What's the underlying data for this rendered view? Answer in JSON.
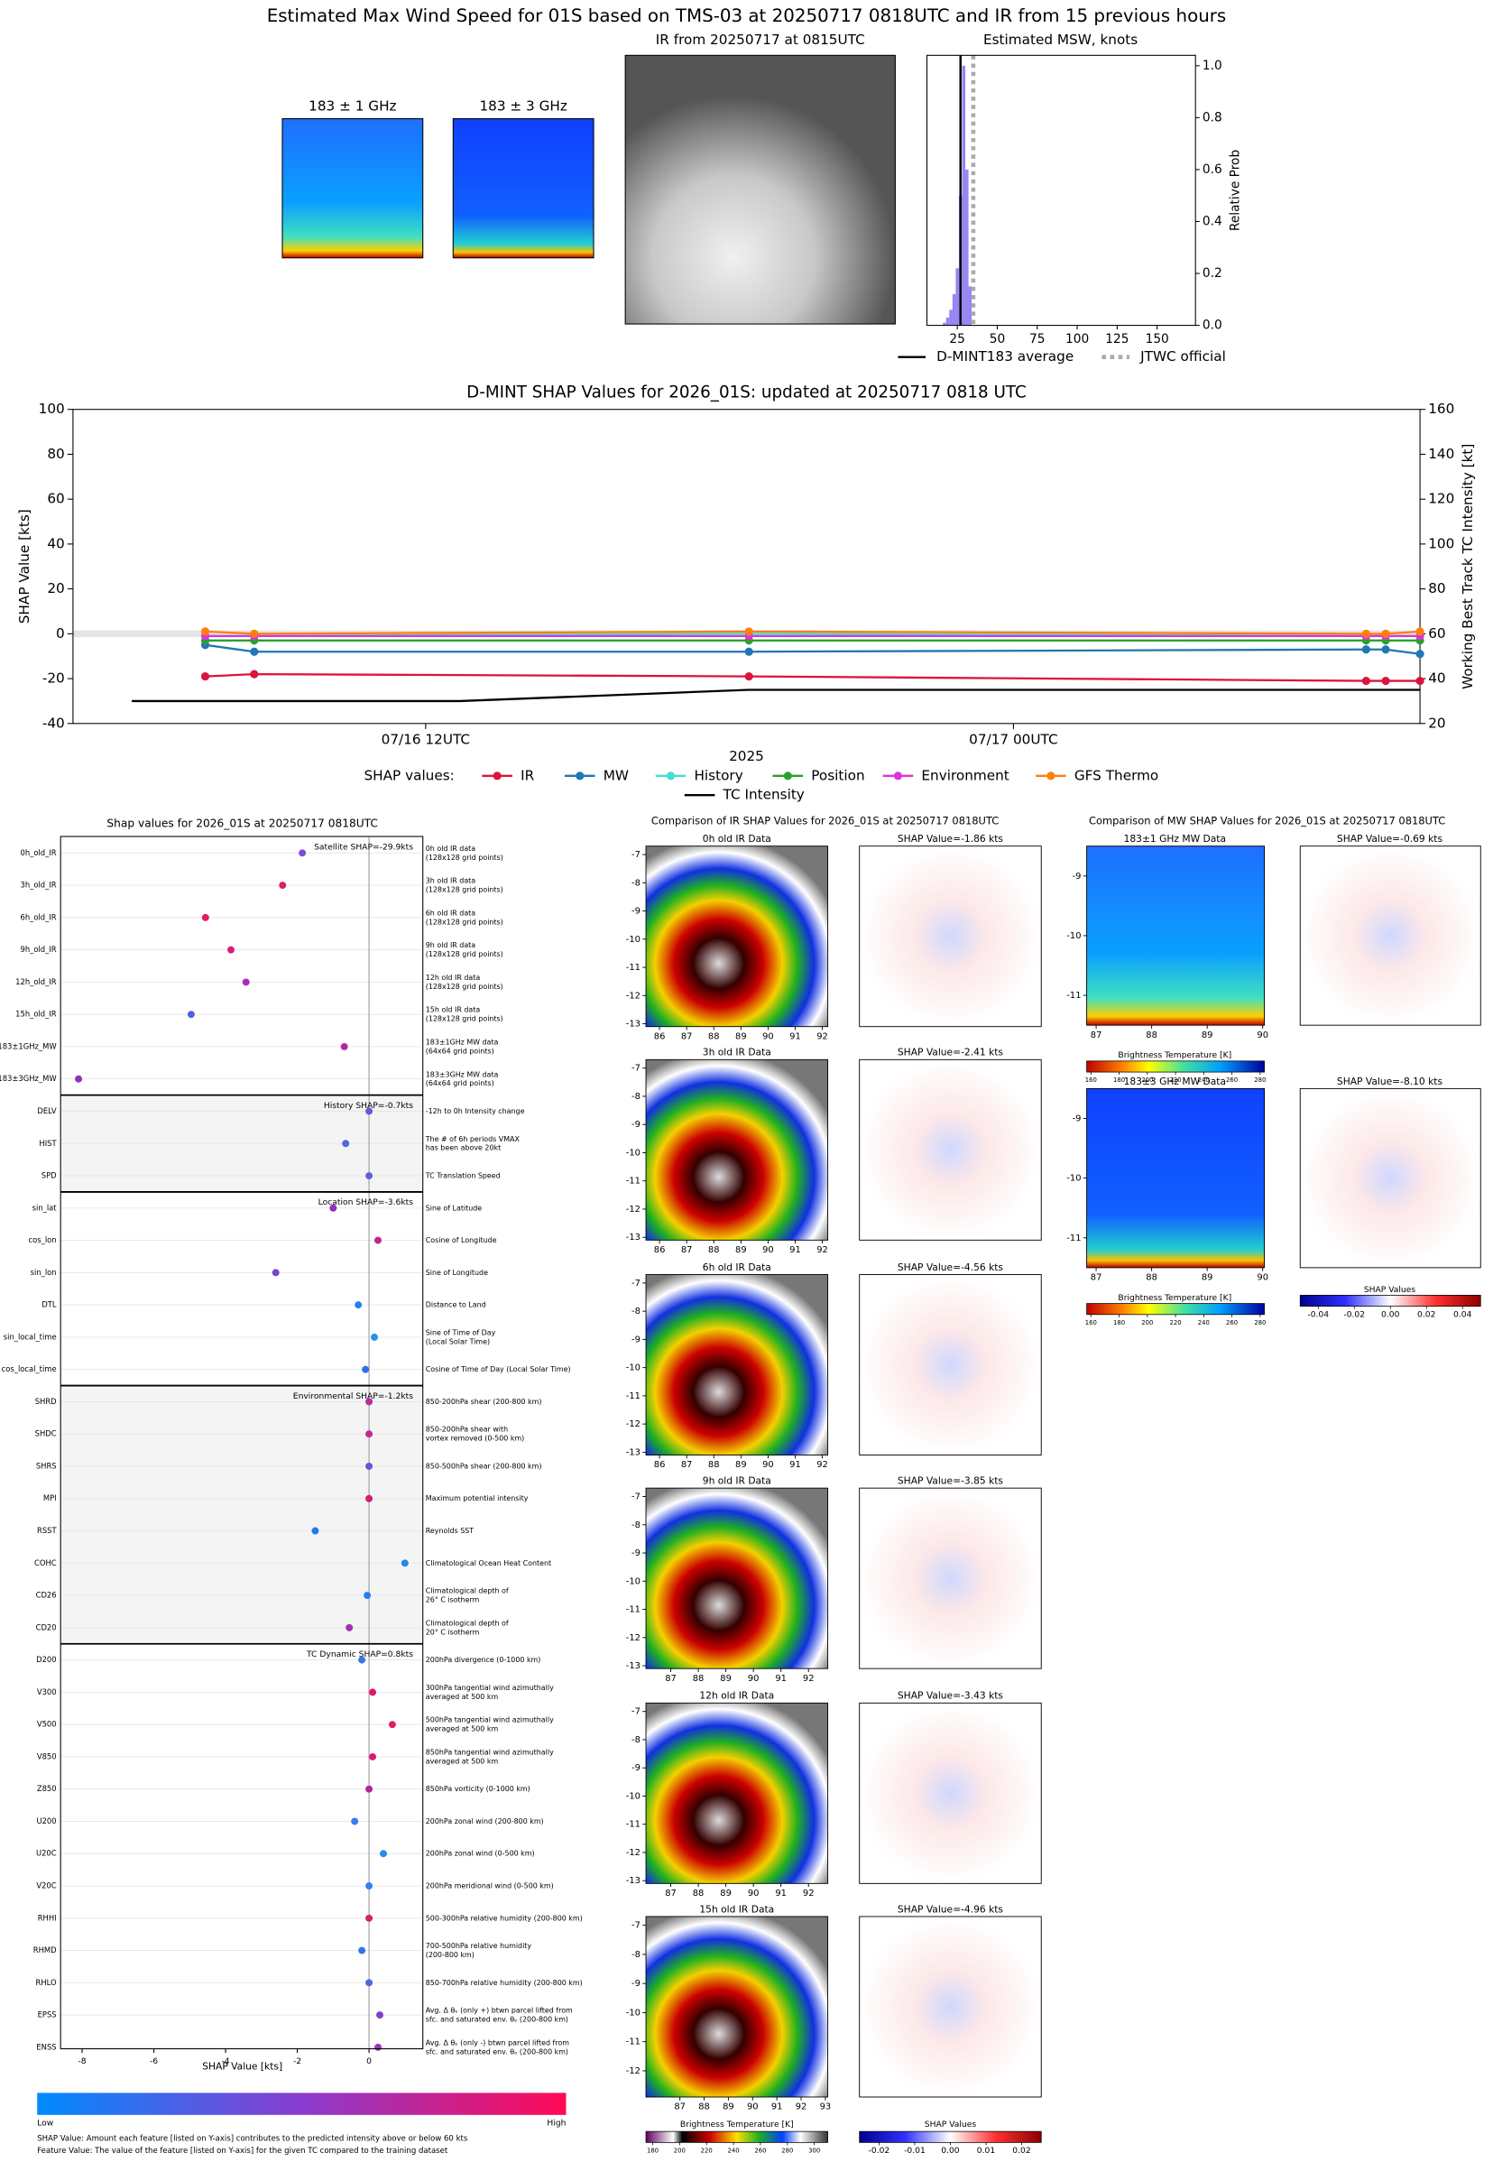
{
  "title": "Estimated Max Wind Speed for 01S based on TMS-03 at 20250717 0818UTC and IR from 15 previous hours",
  "top_images": [
    "183 ± 1 GHz",
    "183 ± 3 GHz",
    "IR from 20250717 at 0815UTC"
  ],
  "chart_data": [
    {
      "type": "histogram",
      "title": "Estimated MSW, knots",
      "y_label": "Relative Prob",
      "bins": [
        16,
        18,
        20,
        22,
        24,
        26,
        28,
        30,
        32,
        34
      ],
      "counts": [
        0.01,
        0.03,
        0.06,
        0.12,
        0.22,
        0.5,
        1.0,
        0.6,
        0.15
      ],
      "color": "#7b68ee",
      "xlim": [
        6,
        174
      ],
      "xticks": [
        25,
        50,
        75,
        100,
        125,
        150
      ],
      "ylim": [
        0,
        1.04
      ],
      "yticks": [
        {
          "value": 0,
          "label": "0.0"
        },
        0.2,
        0.4,
        0.6,
        0.8,
        {
          "value": 1,
          "label": "1.0"
        }
      ],
      "lines": [
        {
          "name": "D-MINT183 average",
          "color": "#000000",
          "x": 27,
          "dashed": false
        },
        {
          "name": "JTWC official",
          "color": "#aaaaaa",
          "x": 35,
          "dashed": true
        }
      ]
    },
    {
      "type": "line",
      "title": "D-MINT SHAP Values for 2026_01S: updated at 20250717 0818 UTC",
      "x_label": "2025",
      "y_label": "SHAP Value [kts]",
      "y2_label": "Working Best Track TC Intensity [kt]",
      "legend_title": "SHAP values:",
      "x": [
        7.5,
        8.5,
        18.6,
        31.2,
        31.6,
        32.3
      ],
      "xlim": [
        4.8,
        32.3
      ],
      "xticks": [
        {
          "value": 12,
          "label": "07/16 12UTC"
        },
        {
          "value": 24,
          "label": "07/17 00UTC"
        }
      ],
      "ylim": [
        -40,
        100
      ],
      "yticks": [
        -40,
        -20,
        0,
        20,
        40,
        60,
        80,
        100
      ],
      "y2lim": [
        20,
        160
      ],
      "y2ticks": [
        20,
        40,
        60,
        80,
        100,
        120,
        140,
        160
      ],
      "series": [
        {
          "name": "IR",
          "color": "#dc143c",
          "values": [
            -19,
            -18,
            -19,
            -21,
            -21,
            -21
          ]
        },
        {
          "name": "MW",
          "color": "#1f77b4",
          "values": [
            -5,
            -8,
            -8,
            -7,
            -7,
            -9
          ]
        },
        {
          "name": "History",
          "color": "#40e0d0",
          "values": [
            -1,
            -1,
            0,
            -1,
            -1,
            -1
          ]
        },
        {
          "name": "Position",
          "color": "#2ca02c",
          "values": [
            -3,
            -3,
            -3,
            -3,
            -3,
            -3
          ]
        },
        {
          "name": "Environment",
          "color": "#dd33dd",
          "values": [
            -1,
            -1,
            -1,
            -1,
            -1,
            -1
          ]
        },
        {
          "name": "GFS Thermo",
          "color": "#ff7f0e",
          "values": [
            1,
            0,
            1,
            0,
            0,
            1
          ]
        },
        {
          "name": "TC Intensity",
          "color": "#000000",
          "axis": "y2",
          "x": [
            6,
            12.7,
            18.6,
            32.3
          ],
          "values": [
            30,
            30,
            35,
            35
          ]
        }
      ]
    },
    {
      "type": "dot",
      "title": "Shap values for 2026_01S at 20250717 0818UTC",
      "x_label": "SHAP Value [kts]",
      "xlim": [
        -8.6,
        1.5
      ],
      "xticks": [
        -8,
        -6,
        -4,
        -2,
        0
      ],
      "groups": [
        {
          "label": "Satellite SHAP=-29.9kts",
          "shaded": false,
          "features": [
            {
              "name": "0h_old_IR",
              "description": [
                "0h old IR data",
                "(128x128 grid points)"
              ],
              "value": -1.86,
              "color": "#7a4bd8"
            },
            {
              "name": "3h_old_IR",
              "description": [
                "3h old IR data",
                "(128x128 grid points)"
              ],
              "value": -2.41,
              "color": "#d8206a"
            },
            {
              "name": "6h_old_IR",
              "description": [
                "6h old IR data",
                "(128x128 grid points)"
              ],
              "value": -4.56,
              "color": "#e8186a"
            },
            {
              "name": "9h_old_IR",
              "description": [
                "9h old IR data",
                "(128x128 grid points)"
              ],
              "value": -3.85,
              "color": "#d81c78"
            },
            {
              "name": "12h_old_IR",
              "description": [
                "12h old IR data",
                "(128x128 grid points)"
              ],
              "value": -3.43,
              "color": "#a030b8"
            },
            {
              "name": "15h_old_IR",
              "description": [
                "15h old IR data",
                "(128x128 grid points)"
              ],
              "value": -4.96,
              "color": "#5060e0"
            },
            {
              "name": "183±1GHz_MW",
              "description": [
                "183±1GHz MW data",
                "(64x64 grid points)"
              ],
              "value": -0.69,
              "color": "#b42898"
            },
            {
              "name": "183±3GHz_MW",
              "description": [
                "183±3GHz MW data",
                "(64x64 grid points)"
              ],
              "value": -8.1,
              "color": "#9030c0"
            }
          ]
        },
        {
          "label": "History SHAP=-0.7kts",
          "shaded": true,
          "features": [
            {
              "name": "DELV",
              "description": [
                "-12h to 0h Intensity change"
              ],
              "value": 0.0,
              "color": "#6858d8"
            },
            {
              "name": "HIST",
              "description": [
                "The # of 6h periods VMAX",
                "has been above 20kt"
              ],
              "value": -0.65,
              "color": "#5068e0"
            },
            {
              "name": "SPD",
              "description": [
                "TC Translation Speed"
              ],
              "value": 0.0,
              "color": "#6060dc"
            }
          ]
        },
        {
          "label": "Location SHAP=-3.6kts",
          "shaded": false,
          "features": [
            {
              "name": "sin_lat",
              "description": [
                "Sine of Latitude"
              ],
              "value": -1.0,
              "color": "#9030c0"
            },
            {
              "name": "cos_lon",
              "description": [
                "Cosine of Longitude"
              ],
              "value": 0.25,
              "color": "#c02490"
            },
            {
              "name": "sin_lon",
              "description": [
                "Sine of Longitude"
              ],
              "value": -2.6,
              "color": "#7048d0"
            },
            {
              "name": "DTL",
              "description": [
                "Distance to Land"
              ],
              "value": -0.3,
              "color": "#2080f0"
            },
            {
              "name": "sin_local_time",
              "description": [
                "Sine of Time of Day",
                "(Local Solar Time)"
              ],
              "value": 0.15,
              "color": "#2890f0"
            },
            {
              "name": "cos_local_time",
              "description": [
                "Cosine of Time of Day (Local Solar Time)"
              ],
              "value": -0.1,
              "color": "#3070e8"
            }
          ]
        },
        {
          "label": "Environmental SHAP=-1.2kts",
          "shaded": true,
          "features": [
            {
              "name": "SHRD",
              "description": [
                "850-200hPa shear (200-800 km)"
              ],
              "value": 0.0,
              "color": "#b02ca0"
            },
            {
              "name": "SHDC",
              "description": [
                "850-200hPa shear with",
                "vortex removed (0-500 km)"
              ],
              "value": 0.0,
              "color": "#c02890"
            },
            {
              "name": "SHRS",
              "description": [
                "850-500hPa shear (200-800 km)"
              ],
              "value": 0.0,
              "color": "#7050d0"
            },
            {
              "name": "MPI",
              "description": [
                "Maximum potential intensity"
              ],
              "value": 0.0,
              "color": "#d0207a"
            },
            {
              "name": "RSST",
              "description": [
                "Reynolds SST"
              ],
              "value": -1.5,
              "color": "#2078f0"
            },
            {
              "name": "COHC",
              "description": [
                "Climatological Ocean Heat Content"
              ],
              "value": 1.0,
              "color": "#2088f0"
            },
            {
              "name": "CD26",
              "description": [
                "Climatological depth of",
                "26° C isotherm"
              ],
              "value": -0.05,
              "color": "#2080f0"
            },
            {
              "name": "CD20",
              "description": [
                "Climatological depth of",
                "20° C isotherm"
              ],
              "value": -0.55,
              "color": "#a030b0"
            }
          ]
        },
        {
          "label": "TC Dynamic SHAP=0.8kts",
          "shaded": false,
          "features": [
            {
              "name": "D200",
              "description": [
                "200hPa divergence (0-1000 km)"
              ],
              "value": -0.2,
              "color": "#3878e8"
            },
            {
              "name": "V300",
              "description": [
                "300hPa tangential wind azimuthally",
                "averaged at 500 km"
              ],
              "value": 0.1,
              "color": "#e0186a"
            },
            {
              "name": "V500",
              "description": [
                "500hPa tangential wind azimuthally",
                "averaged at 500 km"
              ],
              "value": 0.65,
              "color": "#e8186a"
            },
            {
              "name": "V850",
              "description": [
                "850hPa tangential wind azimuthally",
                "averaged at 500 km"
              ],
              "value": 0.1,
              "color": "#e01870"
            },
            {
              "name": "Z850",
              "description": [
                "850hPa vorticity (0-1000 km)"
              ],
              "value": 0.0,
              "color": "#b02898"
            },
            {
              "name": "U200",
              "description": [
                "200hPa zonal wind (200-800 km)"
              ],
              "value": -0.4,
              "color": "#3080f0"
            },
            {
              "name": "U20C",
              "description": [
                "200hPa zonal wind (0-500 km)"
              ],
              "value": 0.4,
              "color": "#2888f0"
            },
            {
              "name": "V20C",
              "description": [
                "200hPa meridional wind (0-500 km)"
              ],
              "value": 0.0,
              "color": "#3080f0"
            },
            {
              "name": "RHHI",
              "description": [
                "500-300hPa relative humidity (200-800 km)"
              ],
              "value": 0.0,
              "color": "#d8206e"
            },
            {
              "name": "RHMD",
              "description": [
                "700-500hPa relative humidity",
                "(200-800 km)"
              ],
              "value": -0.2,
              "color": "#3078e8"
            },
            {
              "name": "RHLO",
              "description": [
                "850-700hPa relative humidity (200-800 km)"
              ],
              "value": 0.0,
              "color": "#5068e0"
            },
            {
              "name": "EPSS",
              "description": [
                "Avg. Δ θₑ (only +) btwn parcel lifted from",
                "sfc. and saturated env. θₑ (200-800 km)"
              ],
              "value": 0.3,
              "color": "#8040c8"
            },
            {
              "name": "ENSS",
              "description": [
                "Avg. Δ θₑ (only -) btwn parcel lifted from",
                "sfc. and saturated env. θₑ (200-800 km)"
              ],
              "value": 0.25,
              "color": "#a030b8"
            }
          ]
        }
      ],
      "colorbar_labels": [
        "Low",
        "High"
      ],
      "notes": [
        "SHAP Value: Amount each feature [listed on Y-axis] contributes to the predicted intensity above or below 60 kts",
        "Feature Value: The value of the feature [listed on Y-axis] for the given TC compared to the training dataset"
      ]
    }
  ],
  "ir_comparison": {
    "title": "Comparison of IR SHAP Values for 2026_01S at 20250717 0818UTC",
    "panels": [
      {
        "data_title": "0h old IR Data",
        "shap_title": "SHAP Value=-1.86 kts",
        "xlim": [
          85.5,
          92.2
        ],
        "ylim": [
          -13.1,
          -6.7
        ],
        "xticks": [
          86,
          87,
          88,
          89,
          90,
          91,
          92
        ],
        "yticks": [
          -7,
          -8,
          -9,
          -10,
          -11,
          -12,
          -13
        ]
      },
      {
        "data_title": "3h old IR Data",
        "shap_title": "SHAP Value=-2.41 kts",
        "xlim": [
          85.5,
          92.2
        ],
        "ylim": [
          -13.1,
          -6.7
        ],
        "xticks": [
          86,
          87,
          88,
          89,
          90,
          91,
          92
        ],
        "yticks": [
          -7,
          -8,
          -9,
          -10,
          -11,
          -12,
          -13
        ]
      },
      {
        "data_title": "6h old IR Data",
        "shap_title": "SHAP Value=-4.56 kts",
        "xlim": [
          85.5,
          92.2
        ],
        "ylim": [
          -13.1,
          -6.7
        ],
        "xticks": [
          86,
          87,
          88,
          89,
          90,
          91,
          92
        ],
        "yticks": [
          -7,
          -8,
          -9,
          -10,
          -11,
          -12,
          -13
        ]
      },
      {
        "data_title": "9h old IR Data",
        "shap_title": "SHAP Value=-3.85 kts",
        "xlim": [
          86.1,
          92.7
        ],
        "ylim": [
          -13.1,
          -6.7
        ],
        "xticks": [
          87,
          88,
          89,
          90,
          91,
          92
        ],
        "yticks": [
          -7,
          -8,
          -9,
          -10,
          -11,
          -12,
          -13
        ]
      },
      {
        "data_title": "12h old IR Data",
        "shap_title": "SHAP Value=-3.43 kts",
        "xlim": [
          86.1,
          92.7
        ],
        "ylim": [
          -13.1,
          -6.7
        ],
        "xticks": [
          87,
          88,
          89,
          90,
          91,
          92
        ],
        "yticks": [
          -7,
          -8,
          -9,
          -10,
          -11,
          -12,
          -13
        ]
      },
      {
        "data_title": "15h old IR Data",
        "shap_title": "SHAP Value=-4.96 kts",
        "xlim": [
          85.6,
          93.1
        ],
        "ylim": [
          -12.9,
          -6.7
        ],
        "xticks": [
          87,
          88,
          89,
          90,
          91,
          92,
          93
        ],
        "yticks": [
          -7,
          -8,
          -9,
          -10,
          -11,
          -12
        ]
      }
    ],
    "colorbars": [
      {
        "label": "Brightness Temperature [K]",
        "lim": [
          175,
          310
        ],
        "ticks": [
          180,
          200,
          220,
          240,
          260,
          280,
          300
        ]
      },
      {
        "label": "SHAP Values",
        "lim": [
          -0.0255,
          0.0255
        ],
        "ticks": [
          -0.02,
          -0.01,
          {
            "value": 0,
            "label": "0.00"
          },
          0.01,
          0.02
        ]
      }
    ]
  },
  "mw_comparison": {
    "title": "Comparison of MW SHAP Values for 2026_01S at 20250717 0818UTC",
    "panels": [
      {
        "data_title": "183±1 GHz MW Data",
        "shap_title": "SHAP Value=-0.69 kts",
        "xlim": [
          86.83,
          90.03
        ],
        "ylim": [
          -11.5,
          -8.5
        ],
        "xticks": [
          87,
          88,
          89,
          90
        ],
        "yticks": [
          -9,
          -10,
          -11
        ],
        "colorbar_label": "Brightness Temperature [K]",
        "colorbar_lim": [
          157,
          283
        ],
        "colorbar_ticks": [
          160,
          180,
          200,
          220,
          240,
          260,
          280
        ]
      },
      {
        "data_title": "183±3 GHz MW Data",
        "shap_title": "SHAP Value=-8.10 kts",
        "xlim": [
          86.83,
          90.03
        ],
        "ylim": [
          -11.5,
          -8.5
        ],
        "xticks": [
          87,
          88,
          89,
          90
        ],
        "yticks": [
          -9,
          -10,
          -11
        ],
        "colorbar_label": "Brightness Temperature [K]",
        "colorbar_lim": [
          157,
          283
        ],
        "colorbar_ticks": [
          160,
          180,
          200,
          220,
          240,
          260,
          280
        ]
      }
    ],
    "shap_colorbar": {
      "label": "SHAP Values",
      "lim": [
        -0.05,
        0.05
      ],
      "ticks": [
        -0.04,
        -0.02,
        {
          "value": 0,
          "label": "0.00"
        },
        0.02,
        0.04
      ]
    }
  }
}
